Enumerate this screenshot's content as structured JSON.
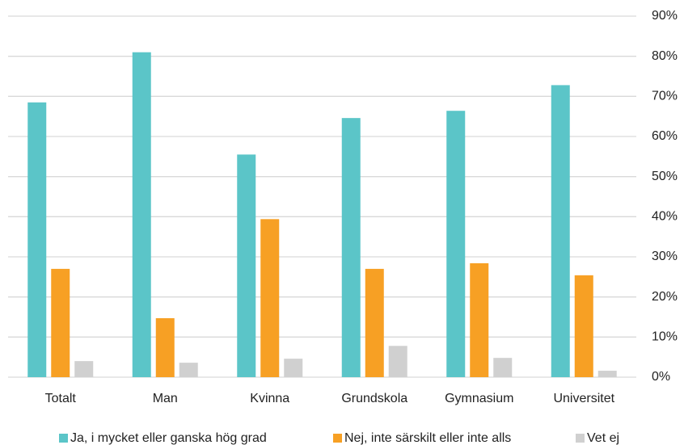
{
  "chart_data": {
    "type": "bar",
    "categories": [
      "Totalt",
      "Man",
      "Kvinna",
      "Grundskola",
      "Gymnasium",
      "Universitet"
    ],
    "series": [
      {
        "name": "Ja, i mycket eller ganska hög grad",
        "color": "#5bc5c8",
        "values": [
          68.5,
          81,
          55.5,
          64.6,
          66.4,
          72.8
        ]
      },
      {
        "name": "Nej, inte särskilt eller inte alls",
        "color": "#f7a024",
        "values": [
          27,
          14.7,
          39.4,
          27,
          28.4,
          25.4
        ]
      },
      {
        "name": "Vet ej",
        "color": "#d0d0d0",
        "values": [
          4,
          3.6,
          4.6,
          7.8,
          4.8,
          1.6
        ]
      }
    ],
    "ylim": [
      0,
      90
    ],
    "yticks": [
      {
        "value": 0,
        "label": "0%"
      },
      {
        "value": 10,
        "label": "10%"
      },
      {
        "value": 20,
        "label": "20%"
      },
      {
        "value": 30,
        "label": "30%"
      },
      {
        "value": 40,
        "label": "40%"
      },
      {
        "value": 50,
        "label": "50%"
      },
      {
        "value": 60,
        "label": "60%"
      },
      {
        "value": 70,
        "label": "70%"
      },
      {
        "value": 80,
        "label": "80%"
      },
      {
        "value": 90,
        "label": "90%"
      }
    ],
    "grid": true,
    "legend": "bottom"
  }
}
